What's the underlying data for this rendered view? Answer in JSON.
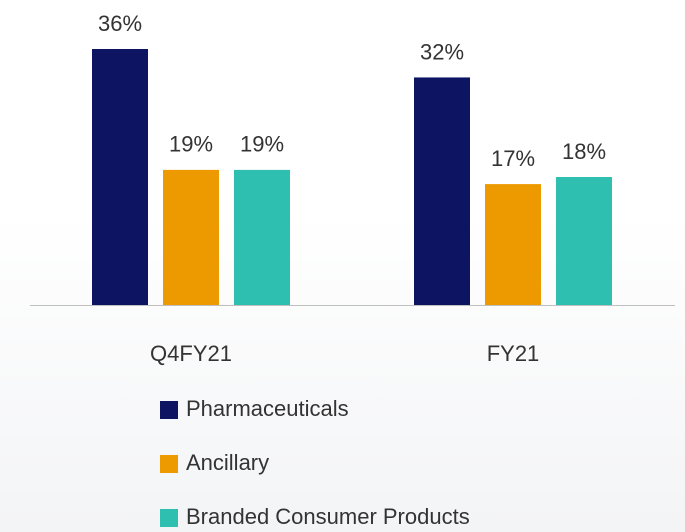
{
  "chart_data": {
    "type": "bar",
    "categories": [
      "Q4FY21",
      "FY21"
    ],
    "series": [
      {
        "name": "Pharmaceuticals",
        "color": "#0d1462",
        "values": [
          36,
          32
        ],
        "value_labels": [
          "36%",
          "32%"
        ]
      },
      {
        "name": "Ancillary",
        "color": "#ec9a00",
        "values": [
          19,
          17
        ],
        "value_labels": [
          "19%",
          "17%"
        ]
      },
      {
        "name": "Branded Consumer Products",
        "color": "#2fbfb1",
        "values": [
          19,
          18
        ],
        "value_labels": [
          "19%",
          "18%"
        ]
      }
    ]
  }
}
